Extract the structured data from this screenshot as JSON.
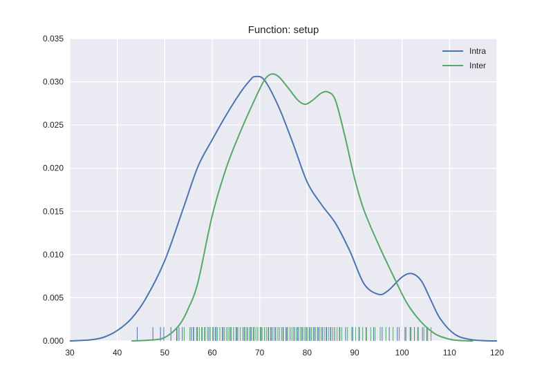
{
  "chart_data": {
    "type": "line",
    "title": "Function: setup",
    "xlabel": "",
    "ylabel": "",
    "xlim": [
      30,
      120
    ],
    "ylim": [
      0,
      0.035
    ],
    "x_ticks": [
      30,
      40,
      50,
      60,
      70,
      80,
      90,
      100,
      110,
      120
    ],
    "x_tick_labels": [
      "30",
      "40",
      "50",
      "60",
      "70",
      "80",
      "90",
      "100",
      "110",
      "120"
    ],
    "y_ticks": [
      0,
      0.005,
      0.01,
      0.015,
      0.02,
      0.025,
      0.03,
      0.035
    ],
    "y_tick_labels": [
      "0.000",
      "0.005",
      "0.010",
      "0.015",
      "0.020",
      "0.025",
      "0.030",
      "0.035"
    ],
    "grid": true,
    "legend_position": "top-right",
    "series": [
      {
        "name": "Intra",
        "color": "#4c72b0",
        "x": [
          30,
          34,
          37,
          40,
          43,
          46,
          50,
          54,
          57,
          60,
          63,
          66,
          68,
          69,
          71,
          74,
          77,
          80,
          83,
          86,
          89,
          92,
          95,
          97,
          100,
          102,
          104,
          106,
          108,
          111,
          114,
          117,
          120
        ],
        "y": [
          0.0,
          0.0001,
          0.0004,
          0.0012,
          0.0026,
          0.0049,
          0.0093,
          0.0155,
          0.0202,
          0.0233,
          0.0262,
          0.0288,
          0.0302,
          0.0306,
          0.0302,
          0.0271,
          0.0229,
          0.0184,
          0.0158,
          0.0136,
          0.0104,
          0.0066,
          0.0054,
          0.0058,
          0.0074,
          0.0078,
          0.007,
          0.0048,
          0.0026,
          0.0008,
          0.0002,
          3e-05,
          0.0
        ]
      },
      {
        "name": "Inter",
        "color": "#55a868",
        "x": [
          43,
          47,
          50,
          53,
          55,
          57,
          60,
          63,
          66,
          69,
          71,
          72.5,
          74,
          76,
          78,
          79.5,
          81,
          83,
          84.5,
          86,
          88,
          90,
          92,
          95,
          98,
          101,
          104,
          107,
          110,
          112,
          114,
          115
        ],
        "y": [
          0.0,
          0.0001,
          0.0004,
          0.0018,
          0.0038,
          0.0068,
          0.0145,
          0.0201,
          0.0243,
          0.028,
          0.0302,
          0.0309,
          0.0306,
          0.0293,
          0.0279,
          0.0274,
          0.0278,
          0.0287,
          0.0288,
          0.0278,
          0.0236,
          0.0188,
          0.0151,
          0.0112,
          0.0077,
          0.0044,
          0.0022,
          0.0008,
          0.0002,
          5e-05,
          1e-05,
          0.0
        ]
      }
    ],
    "rug": [
      {
        "series": "Intra",
        "color": "#4c72b0",
        "x": [
          44.2,
          47.5,
          49.1,
          49.8,
          51.3,
          52.5,
          53.0,
          53.7,
          55.6,
          56.1,
          56.9,
          57.8,
          58.4,
          59.3,
          60.2,
          60.8,
          61.6,
          62.3,
          63.1,
          63.8,
          64.5,
          65.2,
          65.9,
          66.7,
          67.4,
          68.1,
          68.8,
          69.6,
          70.3,
          71.0,
          71.8,
          72.5,
          73.3,
          74.1,
          74.9,
          75.7,
          76.4,
          77.2,
          78.0,
          78.9,
          79.8,
          80.6,
          81.5,
          82.4,
          83.2,
          84.1,
          85.0,
          85.8,
          86.9,
          88.1,
          89.6,
          91.0,
          92.4,
          94.0,
          95.8,
          97.3,
          99.0,
          100.8,
          101.7,
          102.6,
          103.4,
          104.3,
          105.2
        ]
      },
      {
        "series": "Inter",
        "color": "#55a868",
        "x": [
          52.6,
          54.1,
          55.3,
          56.0,
          56.7,
          57.3,
          57.9,
          58.5,
          59.0,
          59.6,
          60.1,
          60.6,
          61.1,
          61.6,
          62.1,
          62.6,
          63.1,
          63.5,
          64.0,
          64.5,
          65.0,
          65.4,
          65.9,
          66.4,
          66.9,
          67.3,
          67.8,
          68.3,
          68.7,
          69.2,
          69.6,
          70.1,
          70.5,
          71.0,
          71.4,
          71.9,
          72.3,
          72.8,
          73.2,
          73.7,
          74.1,
          74.6,
          75.0,
          75.5,
          75.9,
          76.4,
          76.8,
          77.3,
          77.7,
          78.2,
          78.6,
          79.1,
          79.5,
          80.0,
          80.4,
          80.9,
          81.3,
          81.8,
          82.2,
          82.7,
          83.1,
          83.6,
          84.0,
          84.5,
          84.9,
          85.4,
          85.8,
          86.3,
          86.8,
          87.3,
          88.5,
          89.4,
          90.2,
          90.9,
          91.7,
          92.5,
          93.4,
          94.3,
          95.4,
          96.6,
          98.1,
          99.4,
          100.6,
          101.9,
          103.3,
          104.6,
          105.4,
          106.1
        ]
      }
    ]
  }
}
